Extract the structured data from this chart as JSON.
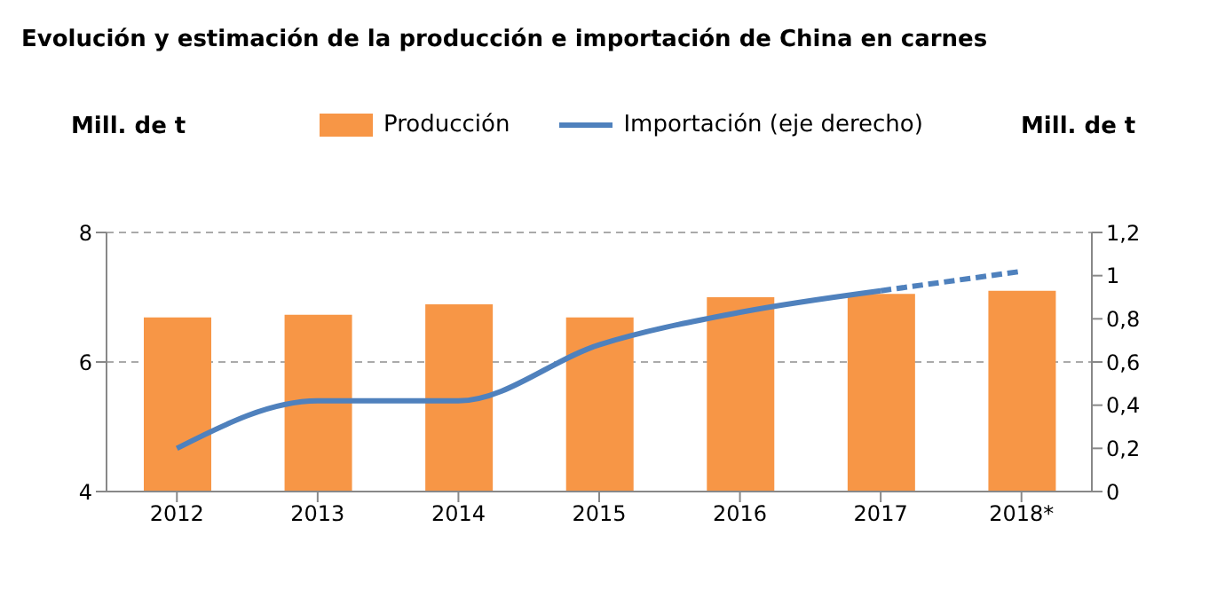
{
  "chart_data": {
    "type": "bar",
    "title": "Evolución y estimación de la producción e importación de China en carnes",
    "ylabel": "Mill. de t",
    "y2label": "Mill. de t",
    "categories": [
      "2012",
      "2013",
      "2014",
      "2015",
      "2016",
      "2017",
      "2018*"
    ],
    "series": [
      {
        "name": "Producción",
        "color": "#f79646",
        "values": [
          6.69,
          6.73,
          6.89,
          6.69,
          7.0,
          7.05,
          7.1
        ]
      },
      {
        "name": "Importación (eje derecho)",
        "type": "line",
        "axis": "y2",
        "color": "#4f81bd",
        "line_style": "solid",
        "values": [
          0.2,
          0.42,
          0.42,
          0.68,
          0.83,
          0.93,
          null
        ]
      },
      {
        "type": "line",
        "axis": "y2",
        "color": "#4f81bd",
        "line_style": "dashed",
        "values": [
          null,
          null,
          null,
          null,
          null,
          0.93,
          1.02
        ]
      }
    ],
    "ylim": [
      4,
      8
    ],
    "yticks": [
      4,
      6,
      8
    ],
    "y2lim": [
      0,
      1.2
    ],
    "y2ticks": [
      {
        "value": 0,
        "label": "0"
      },
      {
        "value": 0.2,
        "label": "0,2"
      },
      {
        "value": 0.4,
        "label": "0,4"
      },
      {
        "value": 0.6,
        "label": "0,6"
      },
      {
        "value": 0.8,
        "label": "0,8"
      },
      {
        "value": 1,
        "label": "1"
      },
      {
        "value": 1.2,
        "label": "1,2"
      }
    ],
    "grid": "y",
    "legend": "top",
    "marker": "none"
  }
}
